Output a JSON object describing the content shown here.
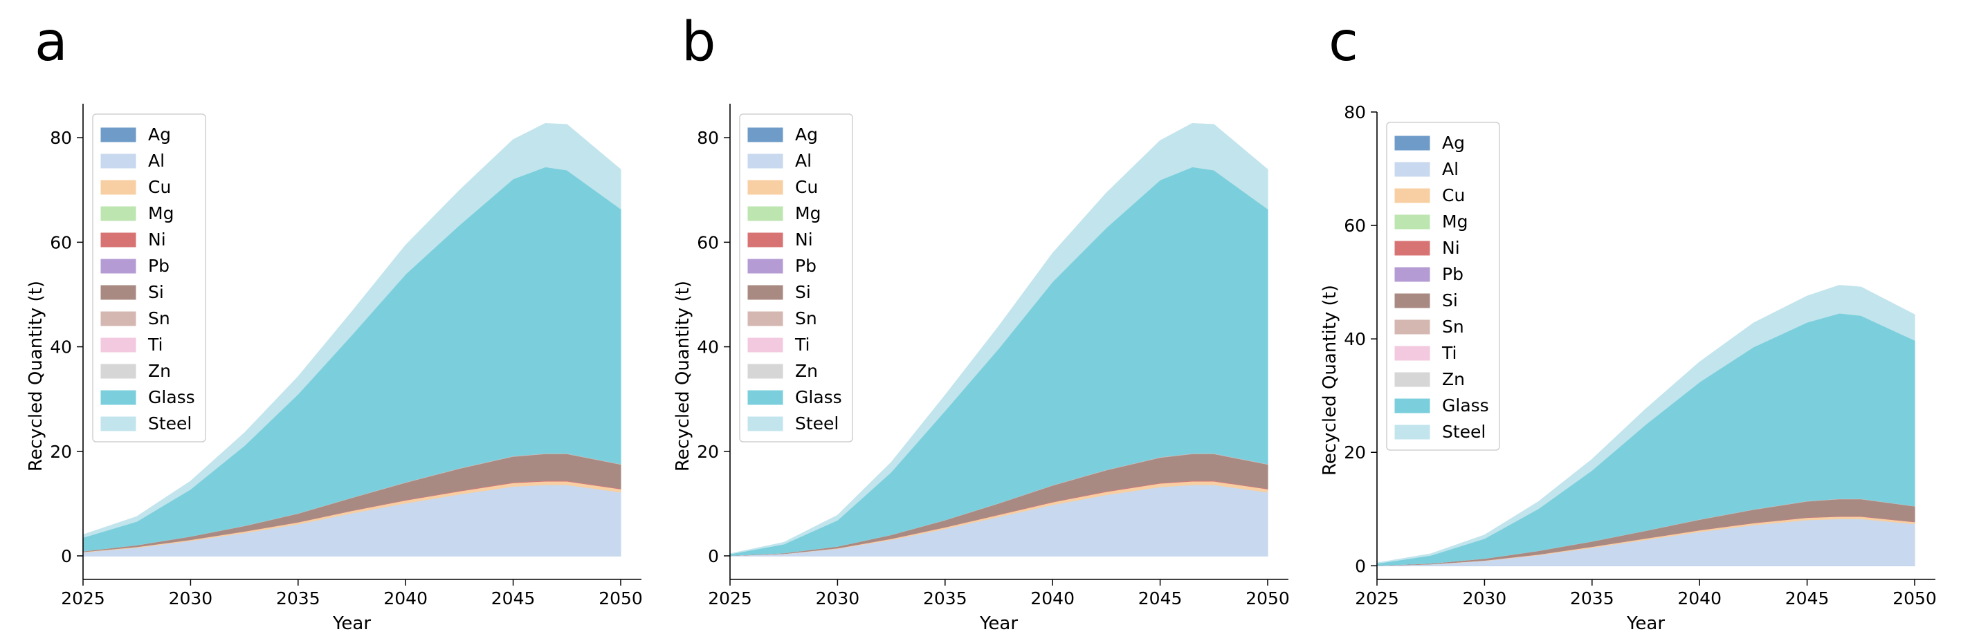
{
  "colors": {
    "Ag": "#6f9bc8",
    "Al": "#c8d8ee",
    "Cu": "#f7cfa2",
    "Mg": "#bde5b0",
    "Ni": "#d87373",
    "Pb": "#b49bd3",
    "Si": "#a98a82",
    "Sn": "#d5b7b1",
    "Ti": "#f2c9de",
    "Zn": "#d6d6d6",
    "Glass": "#7bcfdc",
    "Steel": "#c2e4ec"
  },
  "chart_data": [
    {
      "panel": "a",
      "type": "area",
      "stacked": true,
      "xlabel": "Year",
      "ylabel": "Recycled Quantity (t)",
      "xlim": [
        2025,
        2050
      ],
      "ylim": [
        -4.5,
        86.5
      ],
      "xticks": [
        2025,
        2030,
        2035,
        2040,
        2045,
        2050
      ],
      "yticks": [
        0,
        20,
        40,
        60,
        80
      ],
      "legend_position": "upper-left",
      "x": [
        2025,
        2027.5,
        2030,
        2032.5,
        2035,
        2037.5,
        2040,
        2042.5,
        2045,
        2046.5,
        2047.5,
        2050
      ],
      "series": [
        {
          "name": "Ag",
          "values": [
            0,
            0,
            0,
            0,
            0,
            0,
            0,
            0,
            0,
            0,
            0,
            0
          ]
        },
        {
          "name": "Al",
          "values": [
            0.7,
            1.6,
            2.9,
            4.4,
            6.1,
            8.2,
            10.1,
            11.8,
            13.3,
            13.6,
            13.6,
            12.2
          ]
        },
        {
          "name": "Cu",
          "values": [
            0.1,
            0.15,
            0.2,
            0.3,
            0.35,
            0.45,
            0.55,
            0.6,
            0.7,
            0.7,
            0.7,
            0.6
          ]
        },
        {
          "name": "Mg",
          "values": [
            0,
            0,
            0,
            0,
            0,
            0,
            0,
            0,
            0,
            0,
            0,
            0
          ]
        },
        {
          "name": "Ni",
          "values": [
            0.02,
            0.03,
            0.04,
            0.05,
            0.07,
            0.08,
            0.1,
            0.12,
            0.13,
            0.13,
            0.13,
            0.12
          ]
        },
        {
          "name": "Pb",
          "values": [
            0,
            0,
            0,
            0,
            0,
            0,
            0,
            0,
            0,
            0,
            0,
            0
          ]
        },
        {
          "name": "Si",
          "values": [
            0.1,
            0.3,
            0.6,
            1.0,
            1.6,
            2.4,
            3.3,
            4.2,
            4.9,
            5.1,
            5.1,
            4.6
          ]
        },
        {
          "name": "Sn",
          "values": [
            0.01,
            0.02,
            0.03,
            0.04,
            0.05,
            0.06,
            0.07,
            0.08,
            0.09,
            0.09,
            0.09,
            0.08
          ]
        },
        {
          "name": "Ti",
          "values": [
            0,
            0,
            0,
            0,
            0,
            0,
            0,
            0,
            0,
            0,
            0,
            0
          ]
        },
        {
          "name": "Zn",
          "values": [
            0,
            0,
            0,
            0,
            0,
            0,
            0,
            0,
            0,
            0,
            0,
            0
          ]
        },
        {
          "name": "Glass",
          "values": [
            2.6,
            4.5,
            9.0,
            15.3,
            22.8,
            31.1,
            39.8,
            46.5,
            53.0,
            54.8,
            54.2,
            48.8
          ]
        },
        {
          "name": "Steel",
          "values": [
            0.5,
            0.9,
            1.5,
            2.4,
            3.3,
            4.4,
            5.5,
            6.6,
            7.5,
            8.3,
            8.7,
            7.5
          ]
        }
      ]
    },
    {
      "panel": "b",
      "type": "area",
      "stacked": true,
      "xlabel": "Year",
      "ylabel": "Recycled Quantity (t)",
      "xlim": [
        2025,
        2050
      ],
      "ylim": [
        -4.5,
        86.5
      ],
      "xticks": [
        2025,
        2030,
        2035,
        2040,
        2045,
        2050
      ],
      "yticks": [
        0,
        20,
        40,
        60,
        80
      ],
      "legend_position": "upper-left",
      "x": [
        2025,
        2027.5,
        2030,
        2032.5,
        2035,
        2037.5,
        2040,
        2042.5,
        2045,
        2046.5,
        2047.5,
        2050
      ],
      "series": [
        {
          "name": "Ag",
          "values": [
            0,
            0,
            0,
            0,
            0,
            0,
            0,
            0,
            0,
            0,
            0,
            0
          ]
        },
        {
          "name": "Al",
          "values": [
            0.05,
            0.4,
            1.4,
            3.1,
            5.2,
            7.5,
            9.8,
            11.7,
            13.2,
            13.6,
            13.6,
            12.2
          ]
        },
        {
          "name": "Cu",
          "values": [
            0.01,
            0.04,
            0.1,
            0.2,
            0.3,
            0.4,
            0.5,
            0.6,
            0.7,
            0.7,
            0.7,
            0.6
          ]
        },
        {
          "name": "Mg",
          "values": [
            0,
            0,
            0,
            0,
            0,
            0,
            0,
            0,
            0,
            0,
            0,
            0
          ]
        },
        {
          "name": "Ni",
          "values": [
            0,
            0.01,
            0.03,
            0.05,
            0.06,
            0.08,
            0.1,
            0.12,
            0.13,
            0.13,
            0.13,
            0.12
          ]
        },
        {
          "name": "Pb",
          "values": [
            0,
            0,
            0,
            0,
            0,
            0,
            0,
            0,
            0,
            0,
            0,
            0
          ]
        },
        {
          "name": "Si",
          "values": [
            0.01,
            0.1,
            0.3,
            0.7,
            1.3,
            2.1,
            3.1,
            4.0,
            4.8,
            5.1,
            5.1,
            4.6
          ]
        },
        {
          "name": "Sn",
          "values": [
            0,
            0.01,
            0.02,
            0.03,
            0.04,
            0.05,
            0.07,
            0.08,
            0.09,
            0.09,
            0.09,
            0.08
          ]
        },
        {
          "name": "Ti",
          "values": [
            0,
            0,
            0,
            0,
            0,
            0,
            0,
            0,
            0,
            0,
            0,
            0
          ]
        },
        {
          "name": "Zn",
          "values": [
            0,
            0,
            0,
            0,
            0,
            0,
            0,
            0,
            0,
            0,
            0,
            0
          ]
        },
        {
          "name": "Glass",
          "values": [
            0.3,
            1.7,
            5.0,
            12.0,
            20.9,
            29.6,
            38.9,
            46.3,
            53.0,
            54.8,
            54.2,
            48.8
          ]
        },
        {
          "name": "Steel",
          "values": [
            0.03,
            0.3,
            0.9,
            1.8,
            2.9,
            4.2,
            5.4,
            6.6,
            7.5,
            8.3,
            8.7,
            7.5
          ]
        }
      ]
    },
    {
      "panel": "c",
      "type": "area",
      "stacked": true,
      "xlabel": "Year",
      "ylabel": "Recycled Quantity (t)",
      "xlim": [
        2025,
        2050
      ],
      "ylim": [
        -2.4,
        80
      ],
      "xticks": [
        2025,
        2030,
        2035,
        2040,
        2045,
        2050
      ],
      "yticks": [
        0,
        20,
        40,
        60,
        80
      ],
      "legend_position": "upper-left",
      "x": [
        2025,
        2027.5,
        2030,
        2032.5,
        2035,
        2037.5,
        2040,
        2042.5,
        2045,
        2046.5,
        2047.5,
        2050
      ],
      "series": [
        {
          "name": "Ag",
          "values": [
            0,
            0,
            0,
            0,
            0,
            0,
            0,
            0,
            0,
            0,
            0,
            0
          ]
        },
        {
          "name": "Al",
          "values": [
            0.05,
            0.3,
            0.9,
            1.9,
            3.2,
            4.6,
            6.0,
            7.2,
            8.1,
            8.3,
            8.3,
            7.4
          ]
        },
        {
          "name": "Cu",
          "values": [
            0.01,
            0.03,
            0.07,
            0.12,
            0.18,
            0.25,
            0.3,
            0.35,
            0.4,
            0.4,
            0.4,
            0.35
          ]
        },
        {
          "name": "Mg",
          "values": [
            0,
            0,
            0,
            0,
            0,
            0,
            0,
            0,
            0,
            0,
            0,
            0
          ]
        },
        {
          "name": "Ni",
          "values": [
            0,
            0.01,
            0.02,
            0.03,
            0.04,
            0.05,
            0.06,
            0.07,
            0.08,
            0.08,
            0.08,
            0.07
          ]
        },
        {
          "name": "Pb",
          "values": [
            0,
            0,
            0,
            0,
            0,
            0,
            0,
            0,
            0,
            0,
            0,
            0
          ]
        },
        {
          "name": "Si",
          "values": [
            0.02,
            0.1,
            0.3,
            0.6,
            0.9,
            1.3,
            1.8,
            2.3,
            2.8,
            3.0,
            3.0,
            2.7
          ]
        },
        {
          "name": "Sn",
          "values": [
            0,
            0.01,
            0.02,
            0.02,
            0.03,
            0.04,
            0.05,
            0.05,
            0.06,
            0.06,
            0.06,
            0.05
          ]
        },
        {
          "name": "Ti",
          "values": [
            0,
            0,
            0,
            0,
            0,
            0,
            0,
            0,
            0,
            0,
            0,
            0
          ]
        },
        {
          "name": "Zn",
          "values": [
            0,
            0,
            0,
            0,
            0,
            0,
            0,
            0,
            0,
            0,
            0,
            0
          ]
        },
        {
          "name": "Glass",
          "values": [
            0.35,
            1.4,
            3.5,
            7.4,
            12.5,
            18.7,
            24.2,
            28.6,
            31.5,
            32.7,
            32.3,
            29.2
          ]
        },
        {
          "name": "Steel",
          "values": [
            0.07,
            0.25,
            0.6,
            1.2,
            1.9,
            2.7,
            3.5,
            4.2,
            4.6,
            4.9,
            5.0,
            4.5
          ]
        }
      ]
    }
  ]
}
